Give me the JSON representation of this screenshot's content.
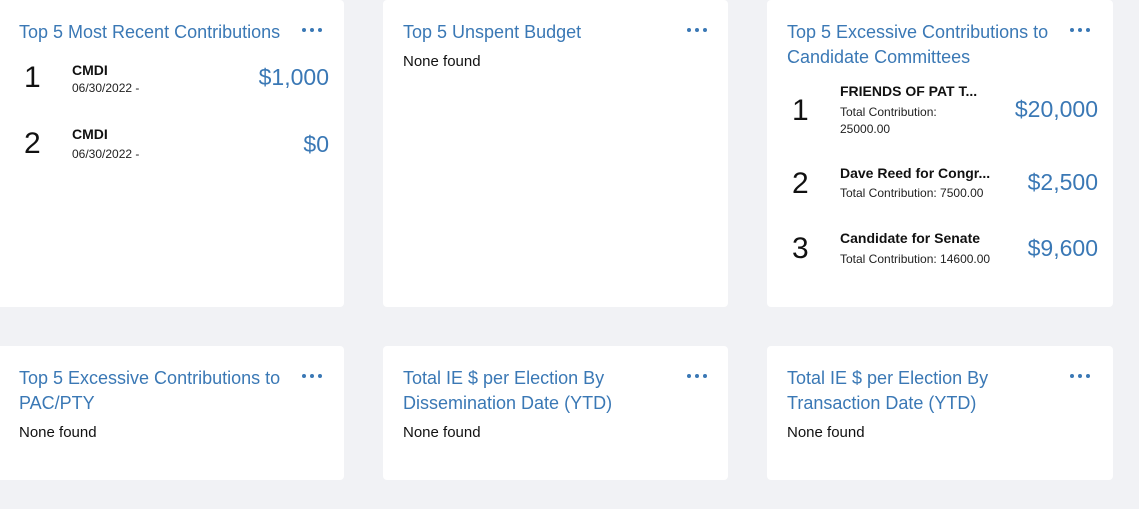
{
  "cards": {
    "recent": {
      "title": "Top 5 Most Recent Contributions",
      "items": [
        {
          "rank": "1",
          "name": "CMDI",
          "date": "06/30/2022 -",
          "amount": "$1,000"
        },
        {
          "rank": "2",
          "name": "CMDI",
          "date": "06/30/2022 -",
          "amount": "$0"
        }
      ]
    },
    "unspent": {
      "title": "Top 5 Unspent Budget",
      "empty": "None found"
    },
    "excessive_candidate": {
      "title_line1": "Top 5 Excessive Contributions to",
      "title_line2": "Candidate Committees",
      "items": [
        {
          "rank": "1",
          "name": "FRIENDS OF PAT T...",
          "sub_line1": "Total Contribution:",
          "sub_line2": "25000.00",
          "amount": "$20,000"
        },
        {
          "rank": "2",
          "name": "Dave Reed for Congr...",
          "sub_line1": "Total Contribution: 7500.00",
          "amount": "$2,500"
        },
        {
          "rank": "3",
          "name": "Candidate for Senate",
          "sub_line1": "Total Contribution: 14600.00",
          "amount": "$9,600"
        }
      ]
    },
    "excessive_pac": {
      "title_line1": "Top 5 Excessive Contributions to",
      "title_line2": "PAC/PTY",
      "empty": "None found"
    },
    "ie_dissemination": {
      "title_line1": "Total IE $ per Election By",
      "title_line2": "Dissemination Date (YTD)",
      "empty": "None found"
    },
    "ie_transaction": {
      "title_line1": "Total IE $ per Election By",
      "title_line2": "Transaction Date (YTD)",
      "empty": "None found"
    }
  },
  "colors": {
    "accent": "#3a78b5",
    "background": "#f1f2f5",
    "card": "#ffffff"
  },
  "icons": {
    "more": "more-horizontal-icon"
  }
}
